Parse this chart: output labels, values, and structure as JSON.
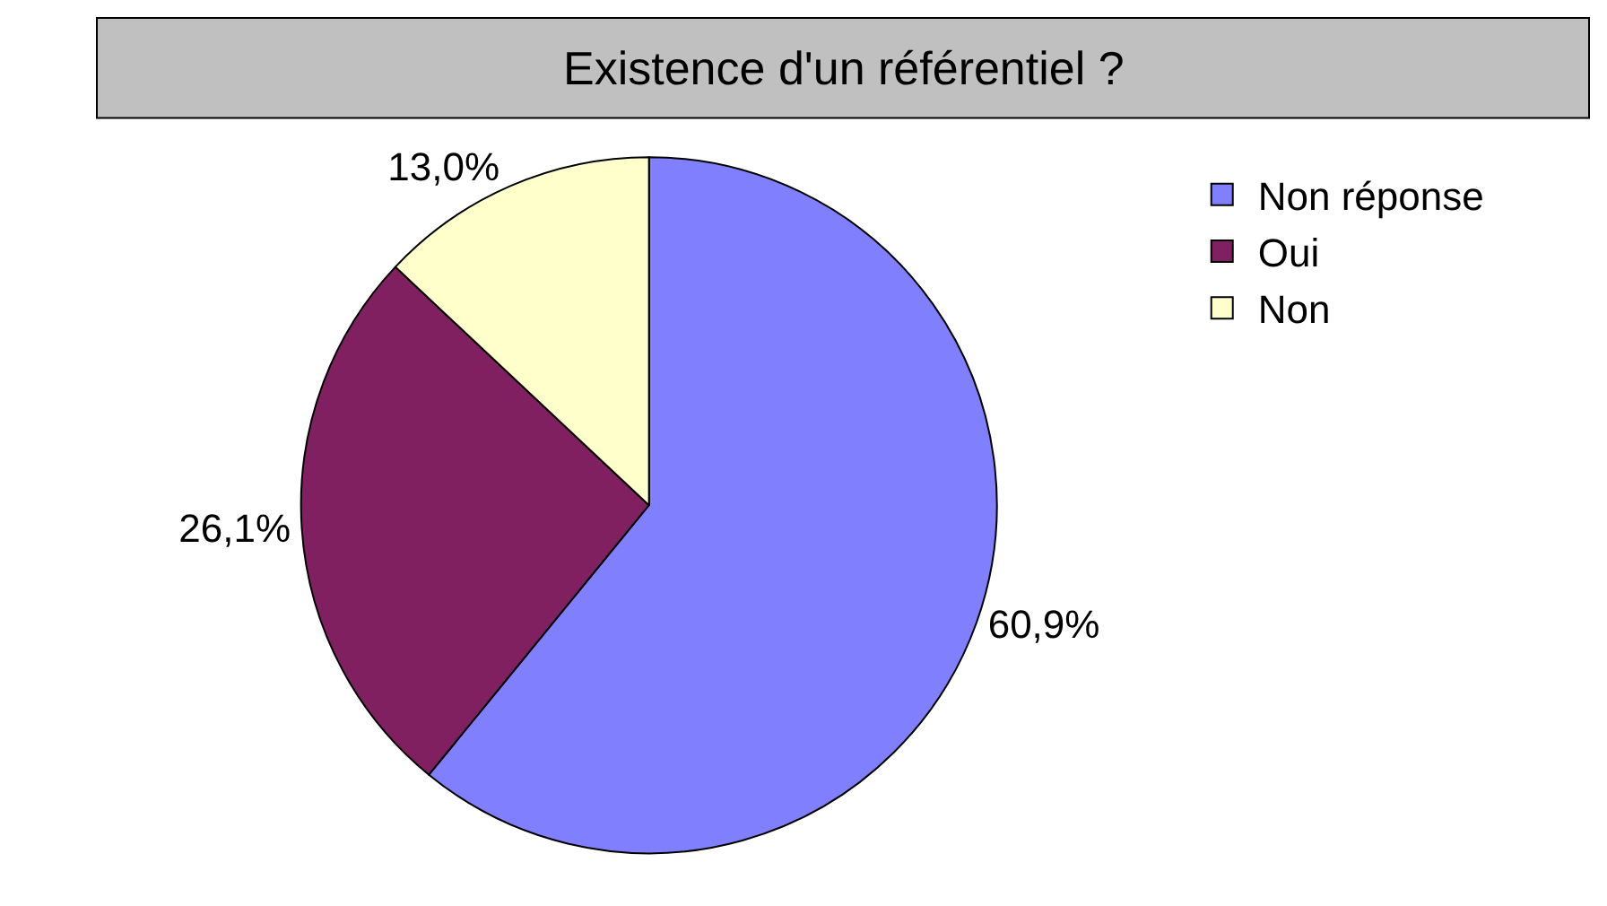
{
  "chart_data": {
    "type": "pie",
    "title": "Existence d'un référentiel ?",
    "categories": [
      "Non réponse",
      "Oui",
      "Non"
    ],
    "values": [
      60.9,
      26.1,
      13.0
    ],
    "colors": [
      "#8080ff",
      "#802060",
      "#ffffcc"
    ],
    "value_labels": [
      "60,9%",
      "26,1%",
      "13,0%"
    ],
    "legend": "top right"
  }
}
